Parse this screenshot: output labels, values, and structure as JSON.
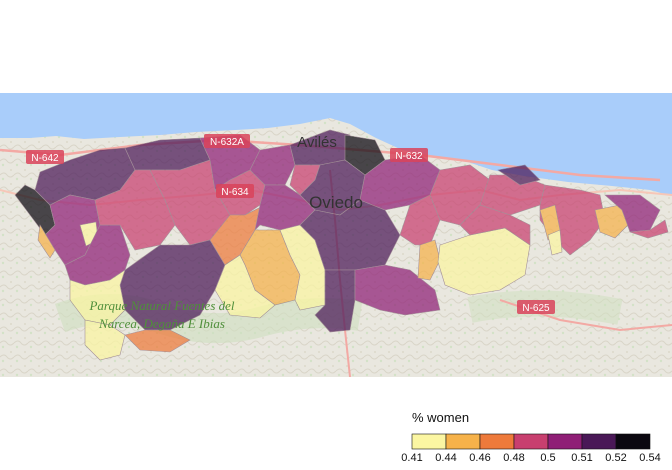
{
  "map": {
    "places": [
      {
        "name": "Avilés",
        "kind": "city"
      },
      {
        "name": "Oviedo",
        "kind": "city"
      }
    ],
    "roads": [
      "N-642",
      "N-632A",
      "N-632",
      "N-634",
      "N-625"
    ],
    "park_label_line1": "Parque Natural Fuentes del",
    "park_label_line2": "Narcea, Degaña E Ibias",
    "colors": {
      "sea": "#a9cdfa",
      "land": "#ecebe4",
      "road_shield": "#d9435a"
    }
  },
  "legend": {
    "title": "% women",
    "ticks": [
      "0.41",
      "0.44",
      "0.46",
      "0.48",
      "0.5",
      "0.51",
      "0.52",
      "0.54"
    ],
    "bins": [
      {
        "color": "#fbf6a2"
      },
      {
        "color": "#f6b24a"
      },
      {
        "color": "#ee7a3b"
      },
      {
        "color": "#c83f6f"
      },
      {
        "color": "#8f1f76"
      },
      {
        "color": "#4a1857"
      },
      {
        "color": "#0b0810"
      }
    ]
  }
}
